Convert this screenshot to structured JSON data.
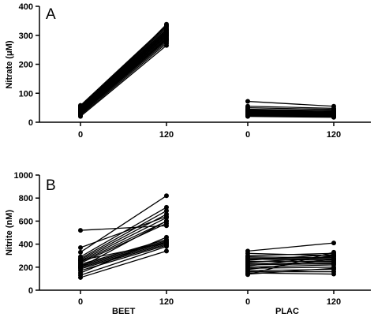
{
  "chart_data": [
    {
      "type": "line",
      "panel_label": "A",
      "ylabel": "Nitrate (μM)",
      "ylim": [
        0,
        400
      ],
      "yticks": [
        0,
        100,
        200,
        300,
        400
      ],
      "x_tick_labels": [
        "0",
        "120",
        "0",
        "120"
      ],
      "groups": [
        {
          "name": "BEET",
          "x": [
            0,
            120
          ],
          "subjects": [
            [
              20,
              265
            ],
            [
              24,
              272
            ],
            [
              28,
              278
            ],
            [
              30,
              283
            ],
            [
              32,
              288
            ],
            [
              35,
              292
            ],
            [
              38,
              296
            ],
            [
              40,
              300
            ],
            [
              42,
              304
            ],
            [
              44,
              307
            ],
            [
              46,
              310
            ],
            [
              48,
              313
            ],
            [
              50,
              317
            ],
            [
              52,
              320
            ],
            [
              54,
              325
            ],
            [
              56,
              330
            ],
            [
              58,
              334
            ],
            [
              36,
              338
            ],
            [
              26,
              300
            ],
            [
              34,
              285
            ]
          ]
        },
        {
          "name": "PLAC",
          "x": [
            0,
            120
          ],
          "subjects": [
            [
              72,
              55
            ],
            [
              55,
              48
            ],
            [
              50,
              44
            ],
            [
              45,
              40
            ],
            [
              42,
              38
            ],
            [
              40,
              35
            ],
            [
              38,
              33
            ],
            [
              36,
              32
            ],
            [
              35,
              30
            ],
            [
              33,
              28
            ],
            [
              31,
              27
            ],
            [
              30,
              25
            ],
            [
              28,
              24
            ],
            [
              26,
              22
            ],
            [
              25,
              20
            ],
            [
              24,
              19
            ],
            [
              22,
              18
            ],
            [
              20,
              17
            ],
            [
              32,
              36
            ],
            [
              44,
              30
            ]
          ]
        }
      ]
    },
    {
      "type": "line",
      "panel_label": "B",
      "ylabel": "Nitrite (nM)",
      "ylim": [
        0,
        1000
      ],
      "yticks": [
        0,
        200,
        400,
        600,
        800,
        1000
      ],
      "x_tick_labels": [
        "0",
        "120",
        "0",
        "120"
      ],
      "groups": [
        {
          "name": "BEET",
          "x": [
            0,
            120
          ],
          "subjects": [
            [
              520,
              560
            ],
            [
              370,
              640
            ],
            [
              330,
              820
            ],
            [
              290,
              720
            ],
            [
              275,
              690
            ],
            [
              265,
              660
            ],
            [
              255,
              630
            ],
            [
              245,
              600
            ],
            [
              235,
              580
            ],
            [
              225,
              440
            ],
            [
              215,
              430
            ],
            [
              205,
              420
            ],
            [
              195,
              410
            ],
            [
              185,
              400
            ],
            [
              170,
              390
            ],
            [
              150,
              460
            ],
            [
              130,
              380
            ],
            [
              110,
              340
            ],
            [
              260,
              410
            ],
            [
              200,
              600
            ]
          ]
        },
        {
          "name": "PLAC",
          "x": [
            0,
            120
          ],
          "subjects": [
            [
              340,
              410
            ],
            [
              320,
              300
            ],
            [
              300,
              320
            ],
            [
              290,
              280
            ],
            [
              280,
              270
            ],
            [
              270,
              260
            ],
            [
              260,
              310
            ],
            [
              250,
              250
            ],
            [
              240,
              290
            ],
            [
              230,
              240
            ],
            [
              220,
              230
            ],
            [
              210,
              300
            ],
            [
              200,
              220
            ],
            [
              190,
              200
            ],
            [
              180,
              270
            ],
            [
              170,
              180
            ],
            [
              160,
              160
            ],
            [
              150,
              140
            ],
            [
              140,
              190
            ],
            [
              135,
              330
            ]
          ]
        }
      ]
    }
  ]
}
